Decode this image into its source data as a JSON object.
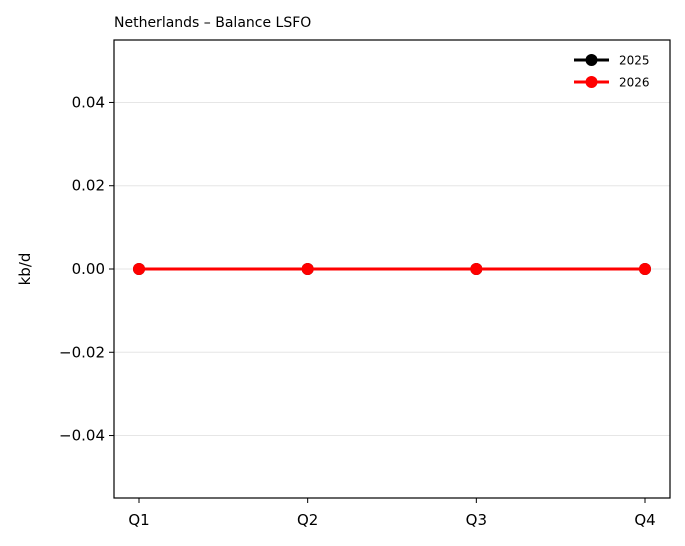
{
  "chart_data": {
    "type": "line",
    "title": "Netherlands – Balance LSFO",
    "xlabel": "",
    "ylabel": "kb/d",
    "categories": [
      "Q1",
      "Q2",
      "Q3",
      "Q4"
    ],
    "ylim": [
      -0.055,
      0.055
    ],
    "yticks": [
      0.04,
      0.02,
      0.0,
      -0.02,
      -0.04
    ],
    "ytick_labels": [
      "0.04",
      "0.02",
      "0.00",
      "−0.02",
      "−0.04"
    ],
    "grid": "horizontal",
    "legend_position": "top-right",
    "series": [
      {
        "name": "2025",
        "color": "#000000",
        "values": [
          0,
          0,
          0,
          0
        ]
      },
      {
        "name": "2026",
        "color": "#ff0000",
        "values": [
          0,
          0,
          0,
          0
        ]
      }
    ]
  }
}
